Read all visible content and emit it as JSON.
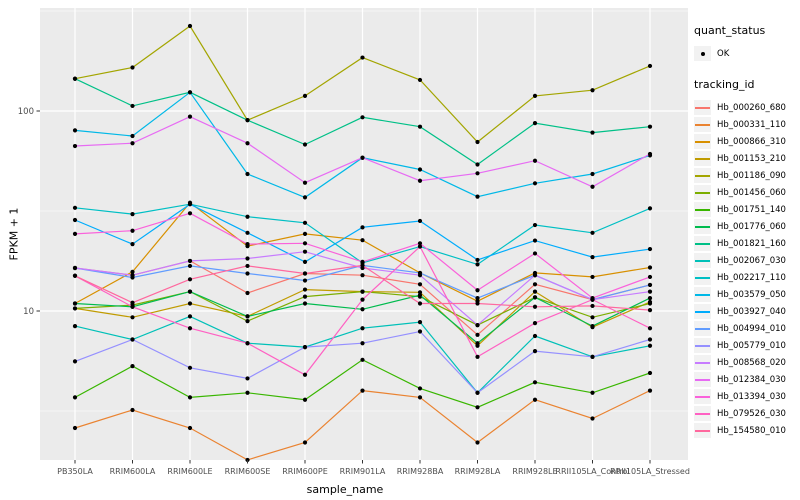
{
  "chart_data": {
    "type": "line",
    "title": "",
    "xlabel": "sample_name",
    "ylabel": "FPKM + 1",
    "y_scale": "log10",
    "y_major_ticks": [
      "10",
      "100"
    ],
    "y_major_values": [
      10,
      100
    ],
    "y_minor_values": [
      3.162,
      31.62,
      316.2
    ],
    "grid": "on",
    "legend_position": "right",
    "point_marker": {
      "shape": "dot",
      "color": "#000000"
    },
    "categories": [
      "PB350LA",
      "RRIM600LA",
      "RRIM600LE",
      "RRIM600SE",
      "RRIM600PE",
      "RRIM901LA",
      "RRIM928BA",
      "RRIM928LA",
      "RRIM928LE",
      "RRII105LA_Control",
      "RRII105LA_Stressed"
    ],
    "series": [
      {
        "name": "Hb_000260_680",
        "color": "#F8766D",
        "values": [
          16.4,
          15.1,
          17.8,
          12.3,
          15.4,
          15.1,
          13.6,
          7.6,
          13.6,
          11.4,
          13.5
        ]
      },
      {
        "name": "Hb_000331_110",
        "color": "#EA8331",
        "values": [
          2.6,
          3.2,
          2.6,
          1.8,
          2.2,
          4.0,
          3.7,
          2.2,
          3.6,
          2.9,
          4.0
        ]
      },
      {
        "name": "Hb_000866_310",
        "color": "#D89000",
        "values": [
          10.9,
          15.7,
          34.8,
          21.1,
          24.3,
          22.6,
          15.5,
          11.2,
          15.5,
          14.8,
          16.5
        ]
      },
      {
        "name": "Hb_001153_210",
        "color": "#C09B00",
        "values": [
          10.3,
          9.3,
          10.9,
          9.4,
          12.8,
          12.5,
          12.4,
          6.7,
          12.5,
          8.3,
          11.1
        ]
      },
      {
        "name": "Hb_001186_090",
        "color": "#A3A500",
        "values": [
          145,
          165,
          266,
          90,
          119,
          185,
          143,
          70,
          119,
          127,
          168
        ]
      },
      {
        "name": "Hb_001456_060",
        "color": "#7CAE00",
        "values": [
          10.3,
          10.7,
          12.5,
          8.9,
          11.8,
          12.5,
          11.8,
          8.5,
          11.7,
          9.3,
          10.9
        ]
      },
      {
        "name": "Hb_001751_140",
        "color": "#39B600",
        "values": [
          3.7,
          5.3,
          3.7,
          3.9,
          3.6,
          5.7,
          4.1,
          3.3,
          4.4,
          3.9,
          4.9
        ]
      },
      {
        "name": "Hb_001776_060",
        "color": "#00BB4E",
        "values": [
          10.9,
          10.5,
          12.5,
          9.4,
          10.9,
          10.2,
          12.0,
          6.9,
          11.7,
          8.4,
          11.6
        ]
      },
      {
        "name": "Hb_001821_160",
        "color": "#00C087",
        "values": [
          145,
          106,
          124,
          90,
          68,
          93,
          83.5,
          54,
          87,
          78,
          83.5
        ]
      },
      {
        "name": "Hb_002067_030",
        "color": "#00C0B8",
        "values": [
          8.4,
          7.2,
          9.4,
          6.9,
          6.6,
          8.2,
          8.8,
          3.9,
          7.5,
          5.9,
          6.7
        ]
      },
      {
        "name": "Hb_002217_110",
        "color": "#00BFC4",
        "values": [
          32.8,
          30.5,
          34.2,
          29.6,
          27.6,
          17.4,
          21.0,
          17.1,
          26.9,
          24.6,
          32.6
        ]
      },
      {
        "name": "Hb_003579_050",
        "color": "#00B8E7",
        "values": [
          80,
          75,
          124,
          48.4,
          37,
          58.4,
          51,
          37.3,
          43.5,
          48.4,
          60
        ]
      },
      {
        "name": "Hb_003927_040",
        "color": "#00ACFC",
        "values": [
          28.5,
          21.6,
          34.2,
          24.6,
          17.6,
          26.2,
          28.2,
          18.0,
          22.5,
          18.6,
          20.4
        ]
      },
      {
        "name": "Hb_004994_010",
        "color": "#619CFF",
        "values": [
          16.4,
          14.7,
          16.8,
          15.4,
          14.2,
          16.9,
          15.5,
          11.6,
          15.1,
          11.4,
          13.5
        ]
      },
      {
        "name": "Hb_005779_010",
        "color": "#9590FF",
        "values": [
          5.6,
          7.2,
          5.2,
          4.6,
          6.6,
          6.9,
          7.9,
          3.9,
          6.3,
          5.9,
          7.2
        ]
      },
      {
        "name": "Hb_008568_020",
        "color": "#C77CFF",
        "values": [
          16.4,
          15.1,
          17.8,
          18.3,
          19.8,
          16.4,
          15.1,
          8.5,
          15.1,
          11.4,
          12.5
        ]
      },
      {
        "name": "Hb_012384_030",
        "color": "#E76BF3",
        "values": [
          66.8,
          69,
          93.7,
          69,
          43.8,
          58.4,
          44.8,
          48.8,
          56.4,
          41.8,
          61
        ]
      },
      {
        "name": "Hb_013394_030",
        "color": "#FA62DB",
        "values": [
          24.3,
          25.2,
          30.8,
          21.6,
          21.8,
          17.6,
          21.8,
          12.7,
          19.4,
          11.6,
          14.8
        ]
      },
      {
        "name": "Hb_079526_030",
        "color": "#FF61C3",
        "values": [
          15.0,
          10.5,
          8.2,
          6.9,
          4.8,
          11.4,
          21.0,
          5.9,
          8.7,
          11.4,
          8.2
        ]
      },
      {
        "name": "Hb_154580_010",
        "color": "#FF689E",
        "values": [
          15.0,
          11.0,
          14.4,
          16.8,
          15.4,
          16.9,
          10.9,
          10.9,
          10.5,
          10.6,
          10.1
        ]
      }
    ]
  },
  "axes": {
    "x_title": "sample_name",
    "y_title": "FPKM + 1"
  },
  "legend": {
    "quant_status_title": "quant_status",
    "quant_status_items": [
      {
        "label": "OK"
      }
    ],
    "tracking_id_title": "tracking_id"
  },
  "colors": {
    "panel_bg": "#EBEBEB",
    "grid": "#FFFFFF",
    "axis_text": "#4D4D4D",
    "tick": "#333333",
    "point": "#000000",
    "legend_key_bg": "#F2F2F2"
  }
}
